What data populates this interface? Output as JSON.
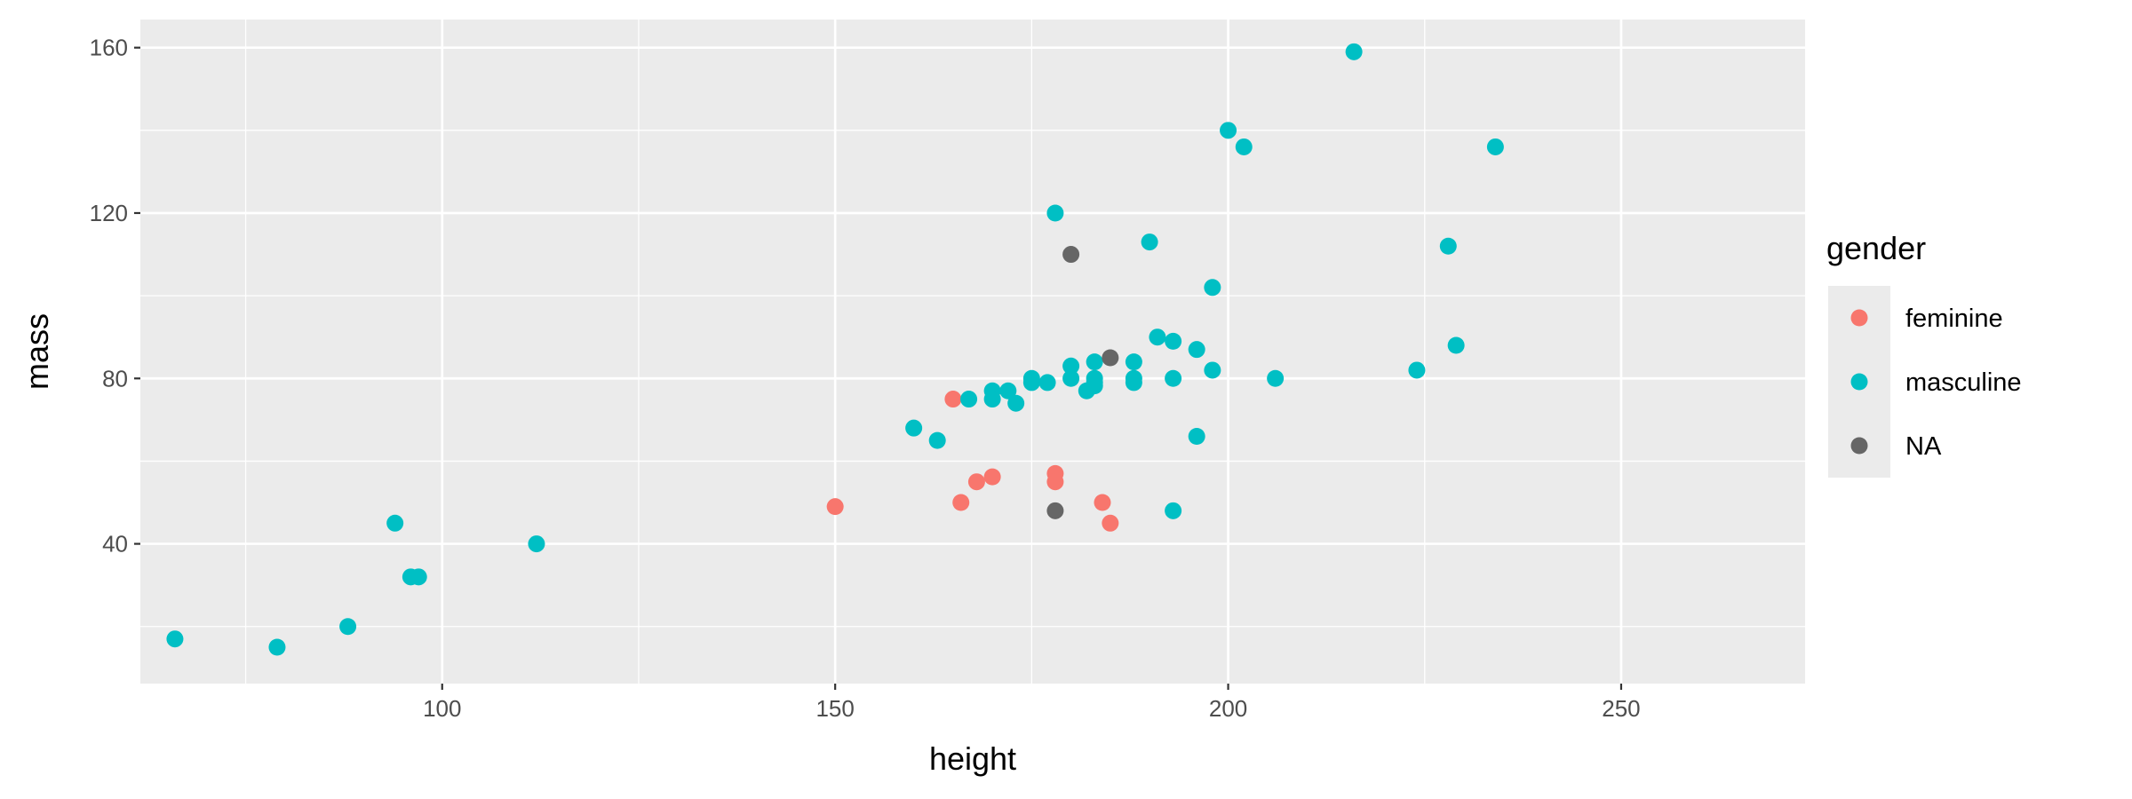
{
  "chart_data": {
    "type": "scatter",
    "title": "",
    "xlabel": "height",
    "ylabel": "mass",
    "xlim": [
      61.6,
      273.4
    ],
    "ylim": [
      6.2,
      166.8
    ],
    "x_ticks": [
      100,
      150,
      200,
      250
    ],
    "y_ticks": [
      40,
      80,
      120,
      160
    ],
    "grid": true,
    "legend": {
      "title": "gender",
      "placement": "right",
      "entries": [
        "feminine",
        "masculine",
        "NA"
      ]
    },
    "series": [
      {
        "name": "feminine",
        "color": "#F8766D",
        "points": [
          [
            150,
            49
          ],
          [
            165,
            75
          ],
          [
            166,
            50
          ],
          [
            168,
            55
          ],
          [
            170,
            56.2
          ],
          [
            178,
            57
          ],
          [
            178,
            55
          ],
          [
            184,
            50
          ],
          [
            185,
            45
          ]
        ]
      },
      {
        "name": "masculine",
        "color": "#00BFC4",
        "points": [
          [
            66,
            17
          ],
          [
            79,
            15
          ],
          [
            88,
            20
          ],
          [
            94,
            45
          ],
          [
            96,
            32
          ],
          [
            97,
            32
          ],
          [
            112,
            40
          ],
          [
            160,
            68
          ],
          [
            163,
            65
          ],
          [
            167,
            75
          ],
          [
            170,
            77
          ],
          [
            170,
            75
          ],
          [
            172,
            77
          ],
          [
            173,
            74
          ],
          [
            175,
            80
          ],
          [
            175,
            79
          ],
          [
            177,
            79
          ],
          [
            178,
            120
          ],
          [
            180,
            83
          ],
          [
            180,
            80
          ],
          [
            182,
            77
          ],
          [
            183,
            84
          ],
          [
            183,
            80
          ],
          [
            183,
            78.2
          ],
          [
            183,
            79
          ],
          [
            188,
            84
          ],
          [
            188,
            80
          ],
          [
            188,
            79
          ],
          [
            190,
            113
          ],
          [
            191,
            90
          ],
          [
            193,
            89
          ],
          [
            193,
            80
          ],
          [
            193,
            48
          ],
          [
            196,
            87
          ],
          [
            196,
            66
          ],
          [
            198,
            102
          ],
          [
            198,
            82
          ],
          [
            200,
            140
          ],
          [
            202,
            136
          ],
          [
            206,
            80
          ],
          [
            216,
            159
          ],
          [
            224,
            82
          ],
          [
            228,
            112
          ],
          [
            229,
            88
          ],
          [
            234,
            136
          ]
        ]
      },
      {
        "name": "NA",
        "color": "#666666",
        "points": [
          [
            178,
            48
          ],
          [
            180,
            110
          ],
          [
            185,
            85
          ]
        ]
      }
    ]
  }
}
